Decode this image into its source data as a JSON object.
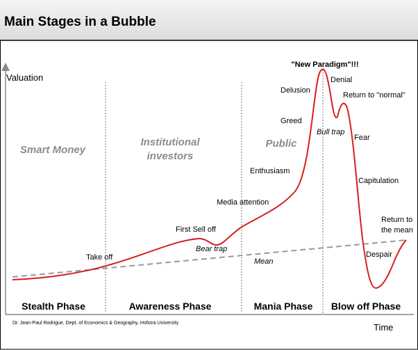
{
  "header": {
    "title": "Main Stages in a Bubble"
  },
  "axes": {
    "y_label": "Valuation",
    "x_label": "Time"
  },
  "groups": [
    [
      "Smart Money"
    ],
    [
      "Institutional",
      "investors"
    ],
    [
      "Public"
    ]
  ],
  "phases": [
    "Stealth Phase",
    "Awareness Phase",
    "Mania Phase",
    "Blow off Phase"
  ],
  "annotations": {
    "new_paradigm": "\"New Paradigm\"!!!",
    "denial": "Denial",
    "delusion": "Delusion",
    "return_normal": "Return to \"normal\"",
    "greed": "Greed",
    "bull_trap": "Bull trap",
    "fear": "Fear",
    "enthusiasm": "Enthusiasm",
    "capitulation": "Capitulation",
    "media_attention": "Media attention",
    "return_mean": [
      "Return to",
      "the mean"
    ],
    "first_sell_off": "First Sell off",
    "bear_trap": "Bear trap",
    "take_off": "Take off",
    "despair": "Despair",
    "mean": "Mean"
  },
  "credit": "Dr. Jean-Paul Rodrigue, Dept. of Economics & Geography, Hofstra University"
}
